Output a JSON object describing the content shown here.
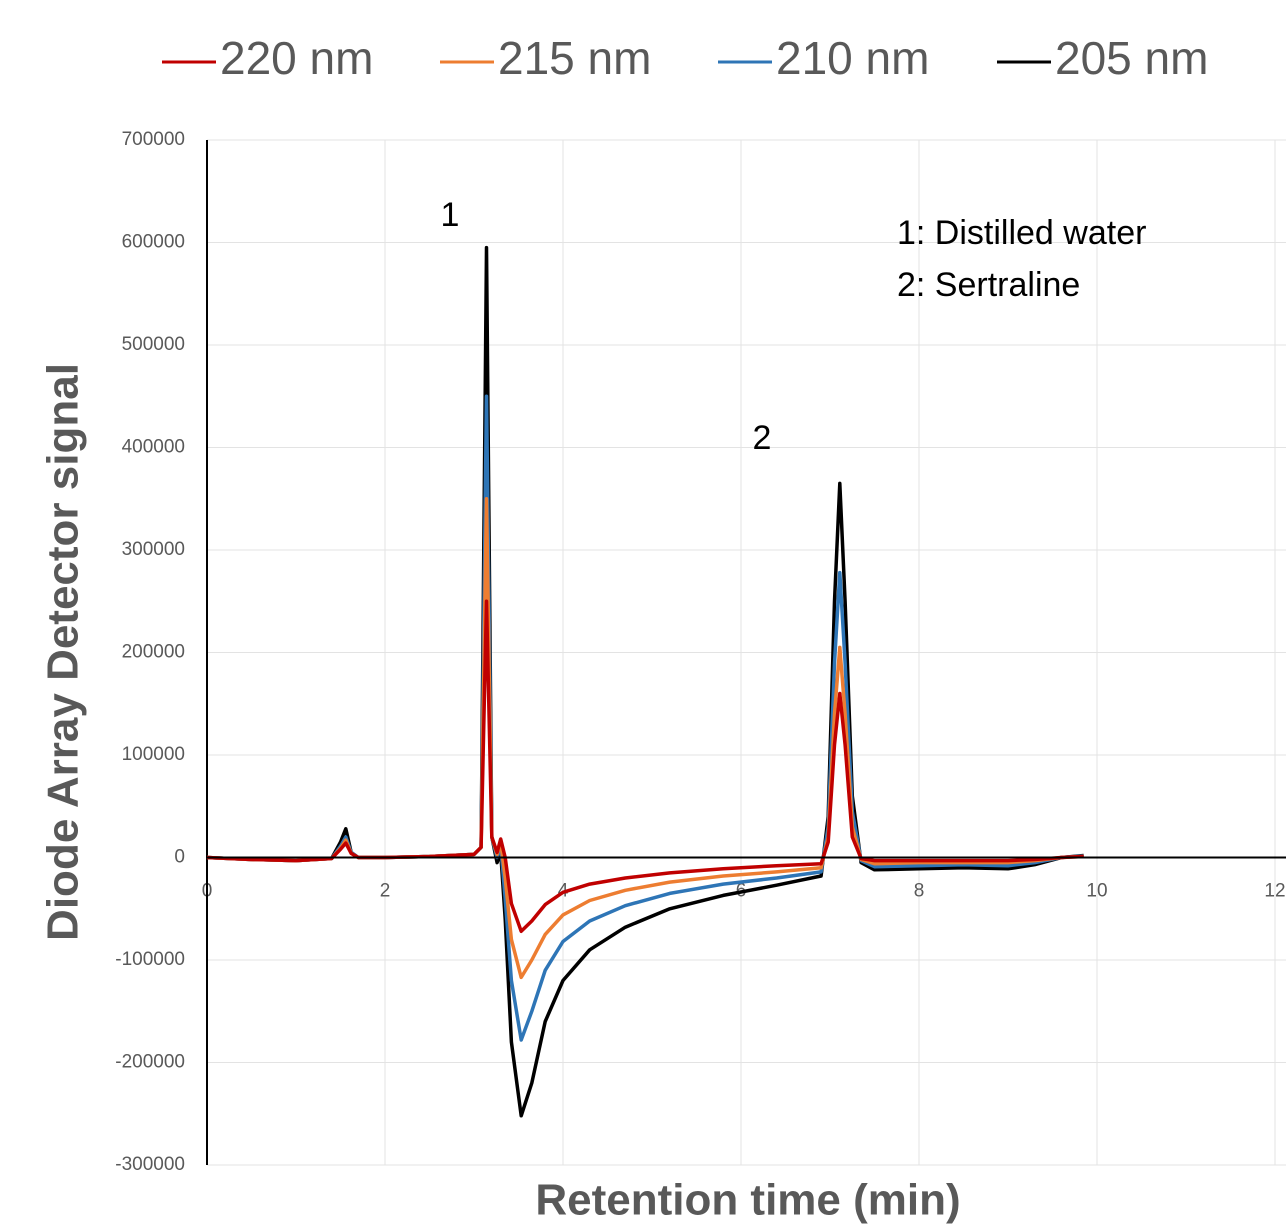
{
  "chart_data": {
    "type": "line",
    "x_label": "Retention time (min)",
    "y_label": "Diode Array Detector signal",
    "annotations": [
      "1",
      "2",
      "1: Distilled water",
      "2: Sertraline"
    ],
    "legend": "top",
    "grid": true,
    "xlim": [
      0,
      12
    ],
    "xticks": [
      0,
      2,
      4,
      6,
      8,
      10,
      12
    ],
    "ylim": [
      -300000,
      700000
    ],
    "yticks": [
      -300000,
      -200000,
      -100000,
      0,
      100000,
      200000,
      300000,
      400000,
      500000,
      600000,
      700000
    ],
    "x": [
      0,
      0.5,
      1.0,
      1.4,
      1.5,
      1.56,
      1.62,
      1.7,
      2.0,
      2.5,
      3.0,
      3.08,
      3.14,
      3.2,
      3.26,
      3.3,
      3.35,
      3.42,
      3.53,
      3.65,
      3.8,
      4.0,
      4.3,
      4.7,
      5.2,
      5.8,
      6.4,
      6.9,
      6.98,
      7.05,
      7.11,
      7.17,
      7.25,
      7.35,
      7.5,
      8.0,
      8.5,
      9.0,
      9.3,
      9.6,
      9.85
    ],
    "series": [
      {
        "name": "220 nm",
        "color": "#c00000",
        "values": [
          0,
          -2000,
          -3000,
          -1000,
          8000,
          14000,
          4000,
          0,
          0,
          1000,
          3000,
          10000,
          250000,
          20000,
          5000,
          18000,
          0,
          -45000,
          -72000,
          -62000,
          -46000,
          -34000,
          -26000,
          -20000,
          -15000,
          -11000,
          -8000,
          -6000,
          15000,
          110000,
          160000,
          110000,
          20000,
          -1000,
          -3000,
          -3000,
          -3000,
          -3000,
          -2000,
          0,
          1000
        ]
      },
      {
        "name": "215 nm",
        "color": "#ed7d31",
        "values": [
          0,
          -2000,
          -3000,
          -1000,
          9000,
          17000,
          4000,
          0,
          0,
          1000,
          3000,
          10000,
          350000,
          20000,
          3000,
          15000,
          -20000,
          -80000,
          -117000,
          -100000,
          -75000,
          -56000,
          -42000,
          -32000,
          -24000,
          -18000,
          -14000,
          -10000,
          20000,
          140000,
          205000,
          140000,
          30000,
          -2000,
          -6000,
          -5000,
          -5000,
          -5000,
          -3000,
          0,
          1000
        ]
      },
      {
        "name": "210 nm",
        "color": "#2e75b6",
        "values": [
          0,
          -2000,
          -3000,
          -1000,
          11000,
          20000,
          5000,
          0,
          0,
          1000,
          3000,
          10000,
          450000,
          20000,
          0,
          12000,
          -40000,
          -120000,
          -178000,
          -150000,
          -110000,
          -82000,
          -62000,
          -47000,
          -35000,
          -26000,
          -20000,
          -14000,
          30000,
          190000,
          278000,
          190000,
          45000,
          -3000,
          -9000,
          -8000,
          -7000,
          -8000,
          -5000,
          0,
          1500
        ]
      },
      {
        "name": "205 nm",
        "color": "#000000",
        "values": [
          0,
          -2000,
          -3000,
          -1000,
          15000,
          28000,
          5000,
          0,
          0,
          1000,
          3000,
          10000,
          595000,
          20000,
          -5000,
          5000,
          -60000,
          -180000,
          -252000,
          -220000,
          -160000,
          -120000,
          -90000,
          -68000,
          -50000,
          -37000,
          -27000,
          -18000,
          40000,
          250000,
          365000,
          250000,
          60000,
          -5000,
          -12000,
          -11000,
          -10000,
          -11000,
          -7000,
          0,
          2000
        ]
      }
    ]
  }
}
